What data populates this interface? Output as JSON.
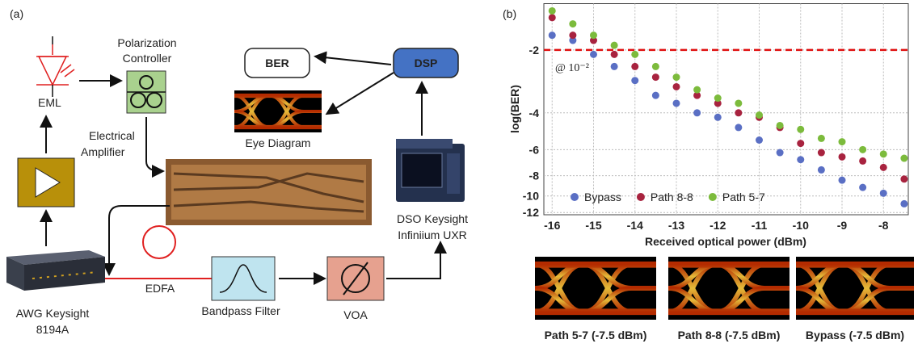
{
  "panel_a": {
    "label": "(a)",
    "eml": "EML",
    "polarization_controller": [
      "Polarization",
      "Controller"
    ],
    "ber": "BER",
    "dsp": "DSP",
    "eye_diagram": "Eye Diagram",
    "electrical_amplifier": [
      "Electrical",
      "Amplifier"
    ],
    "dso": [
      "DSO Keysight",
      "Infiniium UXR"
    ],
    "awg": [
      "AWG Keysight",
      "8194A"
    ],
    "edfa": "EDFA",
    "bandpass_filter": "Bandpass Filter",
    "voa": "VOA"
  },
  "chart_data": {
    "type": "scatter",
    "panel_label": "(b)",
    "x_label": "Received optical power (dBm)",
    "y_label": "log(BER)",
    "x": [
      -16,
      -15.5,
      -15,
      -14.5,
      -14,
      -13.5,
      -13,
      -12.5,
      -12,
      -11.5,
      -11,
      -10.5,
      -10,
      -9.5,
      -9,
      -8.5,
      -8,
      -7.5
    ],
    "series": [
      {
        "name": "Bypass",
        "color": "#5a6fc4",
        "values": [
          -1.7,
          -1.8,
          -2.1,
          -2.4,
          -2.8,
          -3.3,
          -3.6,
          -4.0,
          -4.2,
          -4.7,
          -5.4,
          -6.2,
          -6.7,
          -7.5,
          -8.4,
          -9.1,
          -9.7,
          -10.9
        ]
      },
      {
        "name": "Path 8-8",
        "color": "#a8233f",
        "values": [
          -1.4,
          -1.7,
          -1.8,
          -2.1,
          -2.4,
          -2.7,
          -3.0,
          -3.3,
          -3.6,
          -4.0,
          -4.2,
          -4.7,
          -5.6,
          -6.2,
          -6.5,
          -6.8,
          -7.3,
          -8.3
        ]
      },
      {
        "name": "Path 5-7",
        "color": "#7cbb3c",
        "values": [
          -1.3,
          -1.5,
          -1.7,
          -1.9,
          -2.1,
          -2.4,
          -2.7,
          -3.1,
          -3.4,
          -3.6,
          -4.1,
          -4.6,
          -4.8,
          -5.3,
          -5.5,
          -6.0,
          -6.3,
          -6.6
        ]
      }
    ],
    "xlim": [
      -16.2,
      -7.4
    ],
    "xticks": [
      -16,
      -15,
      -14,
      -13,
      -12,
      -11,
      -10,
      -9,
      -8
    ],
    "ylim": [
      -12.3,
      -1.2
    ],
    "yticks": [
      -2,
      -4,
      -6,
      -8,
      -10,
      -12
    ],
    "yscale": "log",
    "grid": true,
    "legend": "lower left",
    "threshold": -2,
    "threshold_color": "#e01010",
    "annotation": "@ 10⁻²"
  },
  "eye_captions": [
    {
      "text": "Path 5-7 (-7.5 dBm)",
      "color": "#7cbb3c"
    },
    {
      "text": "Path 8-8 (-7.5 dBm)",
      "color": "#a8233f"
    },
    {
      "text": "Bypass (-7.5 dBm)",
      "color": "#7a86c8"
    }
  ]
}
